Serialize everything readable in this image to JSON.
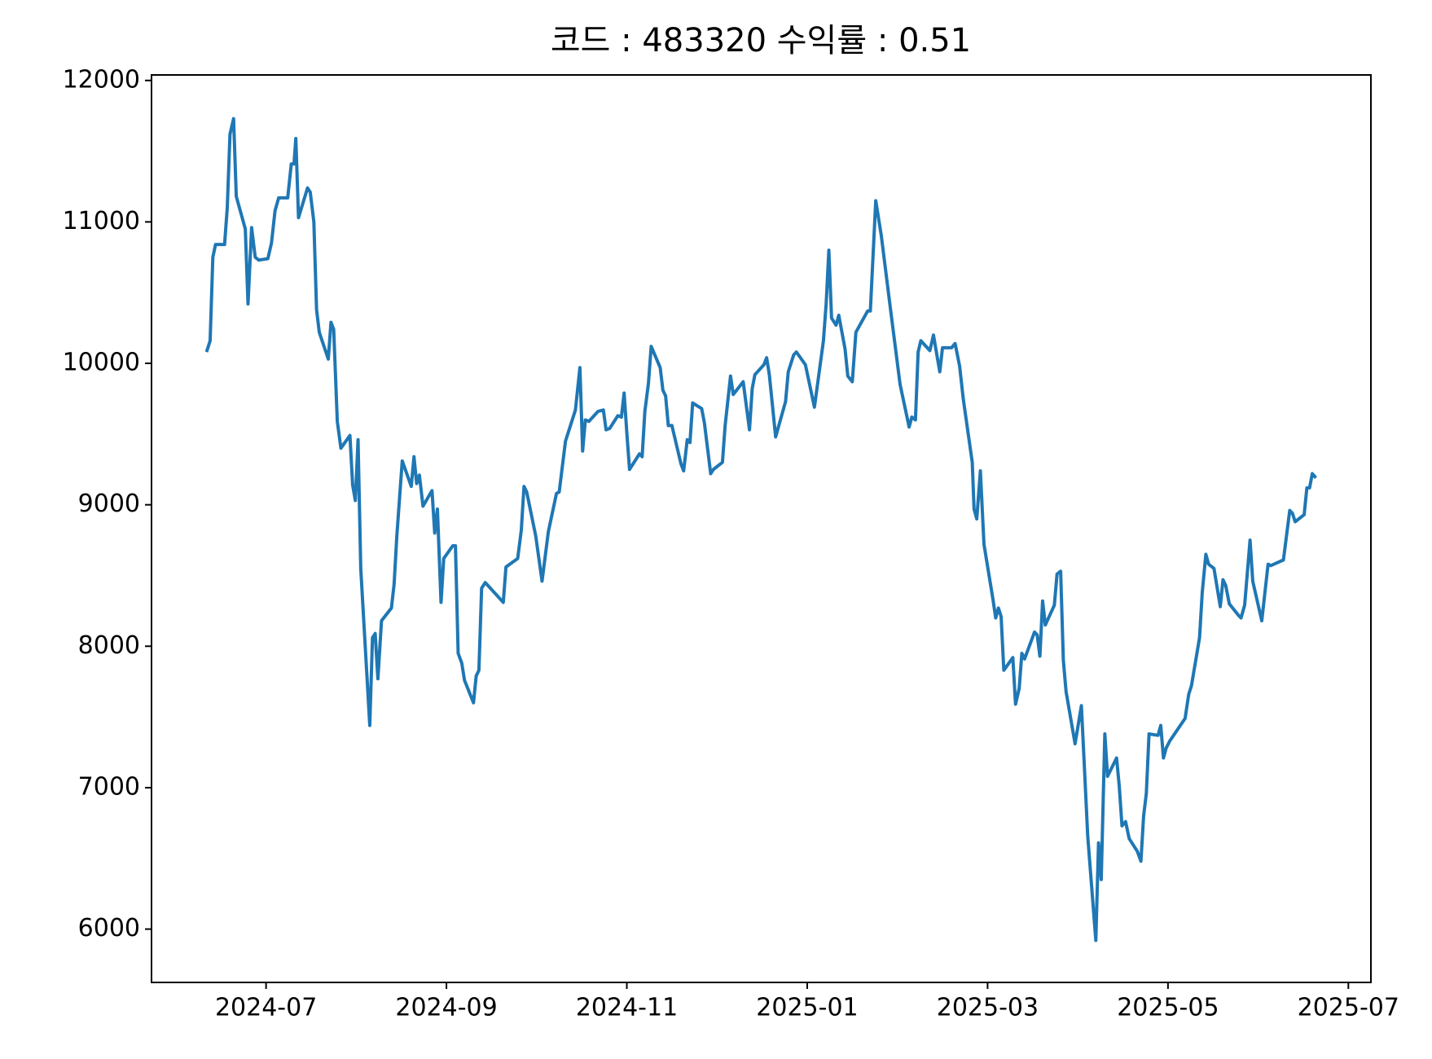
{
  "chart_data": {
    "type": "line",
    "title": "코드 : 483320 수익률 : 0.51",
    "x": [
      5.34,
      5.38,
      5.41,
      5.44,
      5.54,
      5.57,
      5.6,
      5.64,
      5.67,
      5.77,
      5.8,
      5.84,
      5.88,
      5.92,
      6.02,
      6.06,
      6.1,
      6.14,
      6.24,
      6.28,
      6.31,
      6.33,
      6.36,
      6.46,
      6.49,
      6.53,
      6.56,
      6.59,
      6.69,
      6.72,
      6.75,
      6.79,
      6.83,
      6.93,
      6.96,
      6.99,
      7.02,
      7.05,
      7.15,
      7.18,
      7.21,
      7.24,
      7.28,
      7.39,
      7.42,
      7.45,
      7.51,
      7.61,
      7.64,
      7.67,
      7.7,
      7.74,
      7.84,
      7.87,
      7.9,
      7.94,
      7.97,
      8.07,
      8.1,
      8.13,
      8.17,
      8.2,
      8.3,
      8.33,
      8.36,
      8.39,
      8.43,
      8.63,
      8.66,
      8.79,
      8.83,
      8.86,
      8.89,
      8.99,
      9.06,
      9.13,
      9.22,
      9.25,
      9.32,
      9.43,
      9.48,
      9.51,
      9.54,
      9.58,
      9.68,
      9.74,
      9.77,
      9.81,
      9.9,
      9.94,
      9.97,
      10.0,
      10.03,
      10.14,
      10.17,
      10.2,
      10.24,
      10.27,
      10.37,
      10.4,
      10.43,
      10.46,
      10.5,
      10.6,
      10.63,
      10.67,
      10.7,
      10.73,
      10.83,
      10.86,
      10.93,
      10.96,
      11.06,
      11.09,
      11.15,
      11.18,
      11.29,
      11.36,
      11.39,
      11.42,
      11.52,
      11.55,
      11.58,
      11.65,
      11.76,
      11.79,
      11.85,
      11.88,
      11.98,
      12.08,
      12.18,
      12.21,
      12.24,
      12.27,
      12.32,
      12.35,
      12.42,
      12.45,
      12.5,
      12.54,
      12.67,
      12.7,
      12.76,
      12.82,
      12.93,
      13.03,
      13.13,
      13.16,
      13.2,
      13.23,
      13.26,
      13.36,
      13.4,
      13.44,
      13.47,
      13.5,
      13.6,
      13.64,
      13.69,
      13.73,
      13.83,
      13.85,
      13.88,
      13.92,
      13.96,
      14.06,
      14.09,
      14.12,
      14.15,
      14.18,
      14.28,
      14.31,
      14.35,
      14.38,
      14.41,
      14.52,
      14.55,
      14.58,
      14.61,
      14.64,
      14.74,
      14.77,
      14.81,
      14.84,
      14.87,
      14.97,
      15.04,
      15.07,
      15.11,
      15.2,
      15.23,
      15.26,
      15.3,
      15.33,
      15.43,
      15.46,
      15.49,
      15.53,
      15.57,
      15.66,
      15.7,
      15.73,
      15.76,
      15.79,
      15.89,
      15.92,
      15.95,
      15.98,
      16.02,
      16.19,
      16.23,
      16.26,
      16.35,
      16.38,
      16.42,
      16.45,
      16.51,
      16.58,
      16.61,
      16.64,
      16.68,
      16.78,
      16.81,
      16.85,
      16.91,
      16.94,
      17.04,
      17.11,
      17.14,
      17.28,
      17.35,
      17.38,
      17.41,
      17.51,
      17.54,
      17.57,
      17.6,
      17.64
    ],
    "series": [
      {
        "color": "#1f77b4",
        "values": [
          10080,
          10160,
          10750,
          10840,
          10840,
          11100,
          11620,
          11730,
          11180,
          10950,
          10420,
          10960,
          10750,
          10730,
          10740,
          10850,
          11080,
          11170,
          11170,
          11410,
          11410,
          11590,
          11030,
          11240,
          11210,
          11000,
          10380,
          10220,
          10030,
          10290,
          10240,
          9590,
          9400,
          9490,
          9140,
          9030,
          9460,
          8550,
          7440,
          8060,
          8090,
          7770,
          8180,
          8270,
          8440,
          8780,
          9310,
          9130,
          9340,
          9150,
          9210,
          8990,
          9100,
          8800,
          8970,
          8310,
          8620,
          8710,
          8710,
          7950,
          7880,
          7760,
          7600,
          7790,
          7830,
          8410,
          8450,
          8310,
          8560,
          8620,
          8820,
          9130,
          9090,
          8780,
          8460,
          8810,
          9080,
          9090,
          9450,
          9670,
          9970,
          9380,
          9600,
          9590,
          9660,
          9670,
          9530,
          9540,
          9630,
          9620,
          9790,
          9510,
          9250,
          9360,
          9340,
          9660,
          9860,
          10120,
          9970,
          9810,
          9770,
          9560,
          9560,
          9290,
          9240,
          9460,
          9440,
          9720,
          9680,
          9580,
          9220,
          9250,
          9300,
          9560,
          9910,
          9780,
          9870,
          9530,
          9820,
          9920,
          9990,
          10040,
          9920,
          9480,
          9730,
          9940,
          10060,
          10080,
          9990,
          9690,
          10160,
          10420,
          10800,
          10320,
          10270,
          10340,
          10100,
          9910,
          9870,
          10220,
          10370,
          10370,
          11150,
          10910,
          10350,
          9850,
          9550,
          9620,
          9600,
          10080,
          10160,
          10090,
          10200,
          10050,
          9940,
          10110,
          10110,
          10140,
          9980,
          9750,
          9300,
          8970,
          8900,
          9240,
          8720,
          8330,
          8200,
          8270,
          8210,
          7830,
          7920,
          7590,
          7700,
          7950,
          7910,
          8100,
          8080,
          7930,
          8320,
          8150,
          8290,
          8510,
          8530,
          7900,
          7680,
          7310,
          7580,
          7190,
          6660,
          5920,
          6610,
          6350,
          7380,
          7080,
          7210,
          7010,
          6730,
          6760,
          6640,
          6550,
          6480,
          6800,
          6960,
          7380,
          7370,
          7440,
          7210,
          7280,
          7330,
          7490,
          7660,
          7720,
          8060,
          8380,
          8650,
          8580,
          8550,
          8280,
          8470,
          8430,
          8300,
          8220,
          8200,
          8290,
          8750,
          8460,
          8180,
          8580,
          8570,
          8610,
          8960,
          8940,
          8880,
          8930,
          9120,
          9120,
          9220,
          9190
        ]
      }
    ],
    "xlim": [
      4.73,
      18.25
    ],
    "xticks": [
      {
        "value": 6,
        "label": "2024-07"
      },
      {
        "value": 8,
        "label": "2024-09"
      },
      {
        "value": 10,
        "label": "2024-11"
      },
      {
        "value": 12,
        "label": "2025-01"
      },
      {
        "value": 14,
        "label": "2025-03"
      },
      {
        "value": 16,
        "label": "2025-05"
      },
      {
        "value": 18,
        "label": "2025-07"
      }
    ],
    "ylim": [
      5623,
      12039
    ],
    "yticks": [
      6000,
      7000,
      8000,
      9000,
      10000,
      11000,
      12000
    ]
  }
}
